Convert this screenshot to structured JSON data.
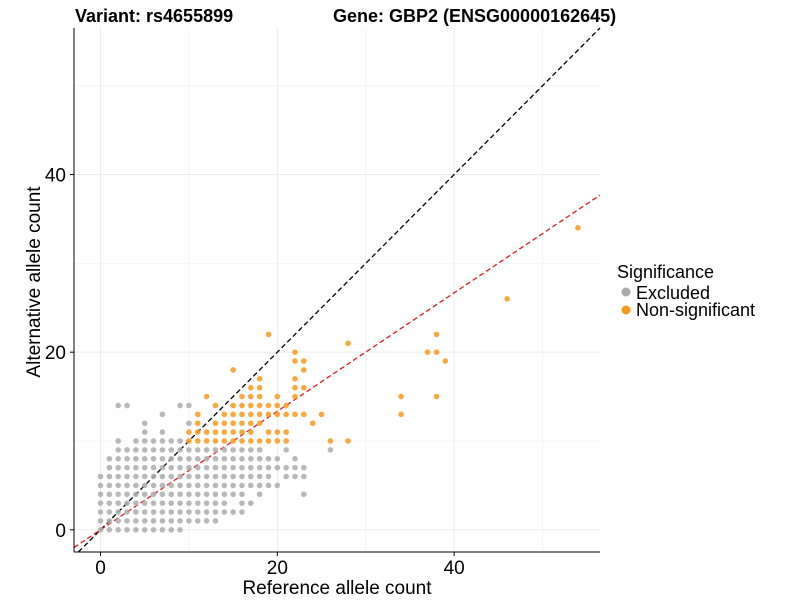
{
  "chart_data": {
    "type": "scatter",
    "title_left": "Variant: rs4655899",
    "title_right": "Gene: GBP2 (ENSG00000162645)",
    "xlabel": "Reference allele count",
    "ylabel": "Alternative allele count",
    "xlim": [
      -3,
      56.5
    ],
    "ylim": [
      -2.5,
      56.5
    ],
    "x_ticks": [
      0,
      20,
      40
    ],
    "y_ticks": [
      0,
      20,
      40
    ],
    "grid": true,
    "legend": {
      "title": "Significance",
      "placement": "right",
      "entries": [
        {
          "label": "Excluded",
          "color": "#ababab"
        },
        {
          "label": "Non-significant",
          "color": "#f79a1c"
        }
      ]
    },
    "reference_lines": [
      {
        "name": "identity",
        "slope": 1,
        "intercept": 0,
        "color": "#000000",
        "style": "dashed"
      },
      {
        "name": "fit",
        "slope": 0.667,
        "intercept": 0,
        "color": "#e31a1c",
        "style": "dashed"
      }
    ],
    "series": [
      {
        "name": "Excluded",
        "color": "#ababab",
        "points": [
          [
            0,
            0
          ],
          [
            0,
            1
          ],
          [
            0,
            2
          ],
          [
            0,
            3
          ],
          [
            0,
            4
          ],
          [
            0,
            5
          ],
          [
            0,
            6
          ],
          [
            1,
            0
          ],
          [
            1,
            1
          ],
          [
            1,
            2
          ],
          [
            1,
            3
          ],
          [
            1,
            4
          ],
          [
            1,
            5
          ],
          [
            1,
            6
          ],
          [
            1,
            7
          ],
          [
            1,
            8
          ],
          [
            2,
            0
          ],
          [
            2,
            1
          ],
          [
            2,
            2
          ],
          [
            2,
            3
          ],
          [
            2,
            4
          ],
          [
            2,
            5
          ],
          [
            2,
            6
          ],
          [
            2,
            7
          ],
          [
            2,
            8
          ],
          [
            2,
            9
          ],
          [
            2,
            10
          ],
          [
            2,
            14
          ],
          [
            3,
            0
          ],
          [
            3,
            1
          ],
          [
            3,
            2
          ],
          [
            3,
            3
          ],
          [
            3,
            4
          ],
          [
            3,
            5
          ],
          [
            3,
            6
          ],
          [
            3,
            7
          ],
          [
            3,
            8
          ],
          [
            3,
            9
          ],
          [
            3,
            14
          ],
          [
            4,
            0
          ],
          [
            4,
            1
          ],
          [
            4,
            2
          ],
          [
            4,
            3
          ],
          [
            4,
            4
          ],
          [
            4,
            5
          ],
          [
            4,
            6
          ],
          [
            4,
            7
          ],
          [
            4,
            8
          ],
          [
            4,
            9
          ],
          [
            4,
            10
          ],
          [
            5,
            0
          ],
          [
            5,
            1
          ],
          [
            5,
            2
          ],
          [
            5,
            3
          ],
          [
            5,
            4
          ],
          [
            5,
            5
          ],
          [
            5,
            6
          ],
          [
            5,
            7
          ],
          [
            5,
            8
          ],
          [
            5,
            9
          ],
          [
            5,
            10
          ],
          [
            5,
            11
          ],
          [
            5,
            12
          ],
          [
            6,
            0
          ],
          [
            6,
            1
          ],
          [
            6,
            2
          ],
          [
            6,
            3
          ],
          [
            6,
            4
          ],
          [
            6,
            5
          ],
          [
            6,
            6
          ],
          [
            6,
            7
          ],
          [
            6,
            8
          ],
          [
            6,
            9
          ],
          [
            6,
            10
          ],
          [
            7,
            0
          ],
          [
            7,
            1
          ],
          [
            7,
            2
          ],
          [
            7,
            3
          ],
          [
            7,
            4
          ],
          [
            7,
            5
          ],
          [
            7,
            6
          ],
          [
            7,
            7
          ],
          [
            7,
            8
          ],
          [
            7,
            9
          ],
          [
            7,
            10
          ],
          [
            7,
            11
          ],
          [
            7,
            13
          ],
          [
            8,
            0
          ],
          [
            8,
            1
          ],
          [
            8,
            2
          ],
          [
            8,
            3
          ],
          [
            8,
            4
          ],
          [
            8,
            5
          ],
          [
            8,
            6
          ],
          [
            8,
            7
          ],
          [
            8,
            8
          ],
          [
            8,
            9
          ],
          [
            8,
            10
          ],
          [
            9,
            0
          ],
          [
            9,
            1
          ],
          [
            9,
            2
          ],
          [
            9,
            3
          ],
          [
            9,
            4
          ],
          [
            9,
            5
          ],
          [
            9,
            6
          ],
          [
            9,
            7
          ],
          [
            9,
            8
          ],
          [
            9,
            9
          ],
          [
            9,
            10
          ],
          [
            9,
            14
          ],
          [
            10,
            1
          ],
          [
            10,
            2
          ],
          [
            10,
            3
          ],
          [
            10,
            4
          ],
          [
            10,
            5
          ],
          [
            10,
            6
          ],
          [
            10,
            7
          ],
          [
            10,
            8
          ],
          [
            10,
            9
          ],
          [
            10,
            12
          ],
          [
            10,
            14
          ],
          [
            11,
            1
          ],
          [
            11,
            2
          ],
          [
            11,
            3
          ],
          [
            11,
            4
          ],
          [
            11,
            5
          ],
          [
            11,
            6
          ],
          [
            11,
            7
          ],
          [
            11,
            8
          ],
          [
            11,
            9
          ],
          [
            12,
            1
          ],
          [
            12,
            2
          ],
          [
            12,
            3
          ],
          [
            12,
            4
          ],
          [
            12,
            5
          ],
          [
            12,
            6
          ],
          [
            12,
            7
          ],
          [
            12,
            8
          ],
          [
            12,
            9
          ],
          [
            13,
            1
          ],
          [
            13,
            2
          ],
          [
            13,
            3
          ],
          [
            13,
            4
          ],
          [
            13,
            5
          ],
          [
            13,
            6
          ],
          [
            13,
            7
          ],
          [
            13,
            8
          ],
          [
            13,
            9
          ],
          [
            14,
            2
          ],
          [
            14,
            3
          ],
          [
            14,
            4
          ],
          [
            14,
            5
          ],
          [
            14,
            6
          ],
          [
            14,
            7
          ],
          [
            14,
            8
          ],
          [
            14,
            9
          ],
          [
            15,
            2
          ],
          [
            15,
            4
          ],
          [
            15,
            5
          ],
          [
            15,
            6
          ],
          [
            15,
            7
          ],
          [
            15,
            8
          ],
          [
            15,
            9
          ],
          [
            16,
            2
          ],
          [
            16,
            3
          ],
          [
            16,
            4
          ],
          [
            16,
            5
          ],
          [
            16,
            6
          ],
          [
            16,
            7
          ],
          [
            16,
            8
          ],
          [
            16,
            9
          ],
          [
            17,
            3
          ],
          [
            17,
            5
          ],
          [
            17,
            6
          ],
          [
            17,
            7
          ],
          [
            17,
            8
          ],
          [
            17,
            9
          ],
          [
            18,
            4
          ],
          [
            18,
            5
          ],
          [
            18,
            6
          ],
          [
            18,
            7
          ],
          [
            18,
            8
          ],
          [
            18,
            9
          ],
          [
            19,
            5
          ],
          [
            19,
            6
          ],
          [
            19,
            7
          ],
          [
            19,
            8
          ],
          [
            20,
            5
          ],
          [
            20,
            7
          ],
          [
            20,
            8
          ],
          [
            21,
            6
          ],
          [
            21,
            7
          ],
          [
            21,
            9
          ],
          [
            22,
            6
          ],
          [
            22,
            7
          ],
          [
            22,
            8
          ],
          [
            23,
            4
          ],
          [
            23,
            6
          ],
          [
            23,
            7
          ],
          [
            26,
            9
          ]
        ]
      },
      {
        "name": "Non-significant",
        "color": "#f79a1c",
        "points": [
          [
            10,
            10
          ],
          [
            10,
            11
          ],
          [
            11,
            10
          ],
          [
            11,
            11
          ],
          [
            11,
            12
          ],
          [
            11,
            13
          ],
          [
            12,
            10
          ],
          [
            12,
            11
          ],
          [
            12,
            15
          ],
          [
            13,
            10
          ],
          [
            13,
            11
          ],
          [
            13,
            12
          ],
          [
            13,
            14
          ],
          [
            14,
            10
          ],
          [
            14,
            11
          ],
          [
            14,
            12
          ],
          [
            14,
            13
          ],
          [
            15,
            10
          ],
          [
            15,
            11
          ],
          [
            15,
            12
          ],
          [
            15,
            13
          ],
          [
            15,
            14
          ],
          [
            15,
            18
          ],
          [
            16,
            10
          ],
          [
            16,
            11
          ],
          [
            16,
            12
          ],
          [
            16,
            13
          ],
          [
            16,
            14
          ],
          [
            16,
            15
          ],
          [
            17,
            10
          ],
          [
            17,
            11
          ],
          [
            17,
            12
          ],
          [
            17,
            13
          ],
          [
            17,
            14
          ],
          [
            17,
            15
          ],
          [
            17,
            16
          ],
          [
            18,
            10
          ],
          [
            18,
            12
          ],
          [
            18,
            13
          ],
          [
            18,
            14
          ],
          [
            18,
            15
          ],
          [
            18,
            16
          ],
          [
            18,
            17
          ],
          [
            19,
            10
          ],
          [
            19,
            11
          ],
          [
            19,
            13
          ],
          [
            19,
            14
          ],
          [
            19,
            22
          ],
          [
            20,
            10
          ],
          [
            20,
            11
          ],
          [
            20,
            13
          ],
          [
            20,
            14
          ],
          [
            20,
            15
          ],
          [
            21,
            10
          ],
          [
            21,
            11
          ],
          [
            21,
            13
          ],
          [
            21,
            14
          ],
          [
            22,
            13
          ],
          [
            22,
            15
          ],
          [
            22,
            16
          ],
          [
            22,
            17
          ],
          [
            22,
            19
          ],
          [
            22,
            20
          ],
          [
            23,
            13
          ],
          [
            23,
            16
          ],
          [
            23,
            18
          ],
          [
            23,
            19
          ],
          [
            24,
            12
          ],
          [
            25,
            13
          ],
          [
            26,
            10
          ],
          [
            28,
            10
          ],
          [
            28,
            21
          ],
          [
            34,
            13
          ],
          [
            34,
            15
          ],
          [
            37,
            20
          ],
          [
            38,
            15
          ],
          [
            38,
            20
          ],
          [
            38,
            22
          ],
          [
            39,
            19
          ],
          [
            46,
            26
          ],
          [
            54,
            34
          ]
        ]
      }
    ]
  }
}
